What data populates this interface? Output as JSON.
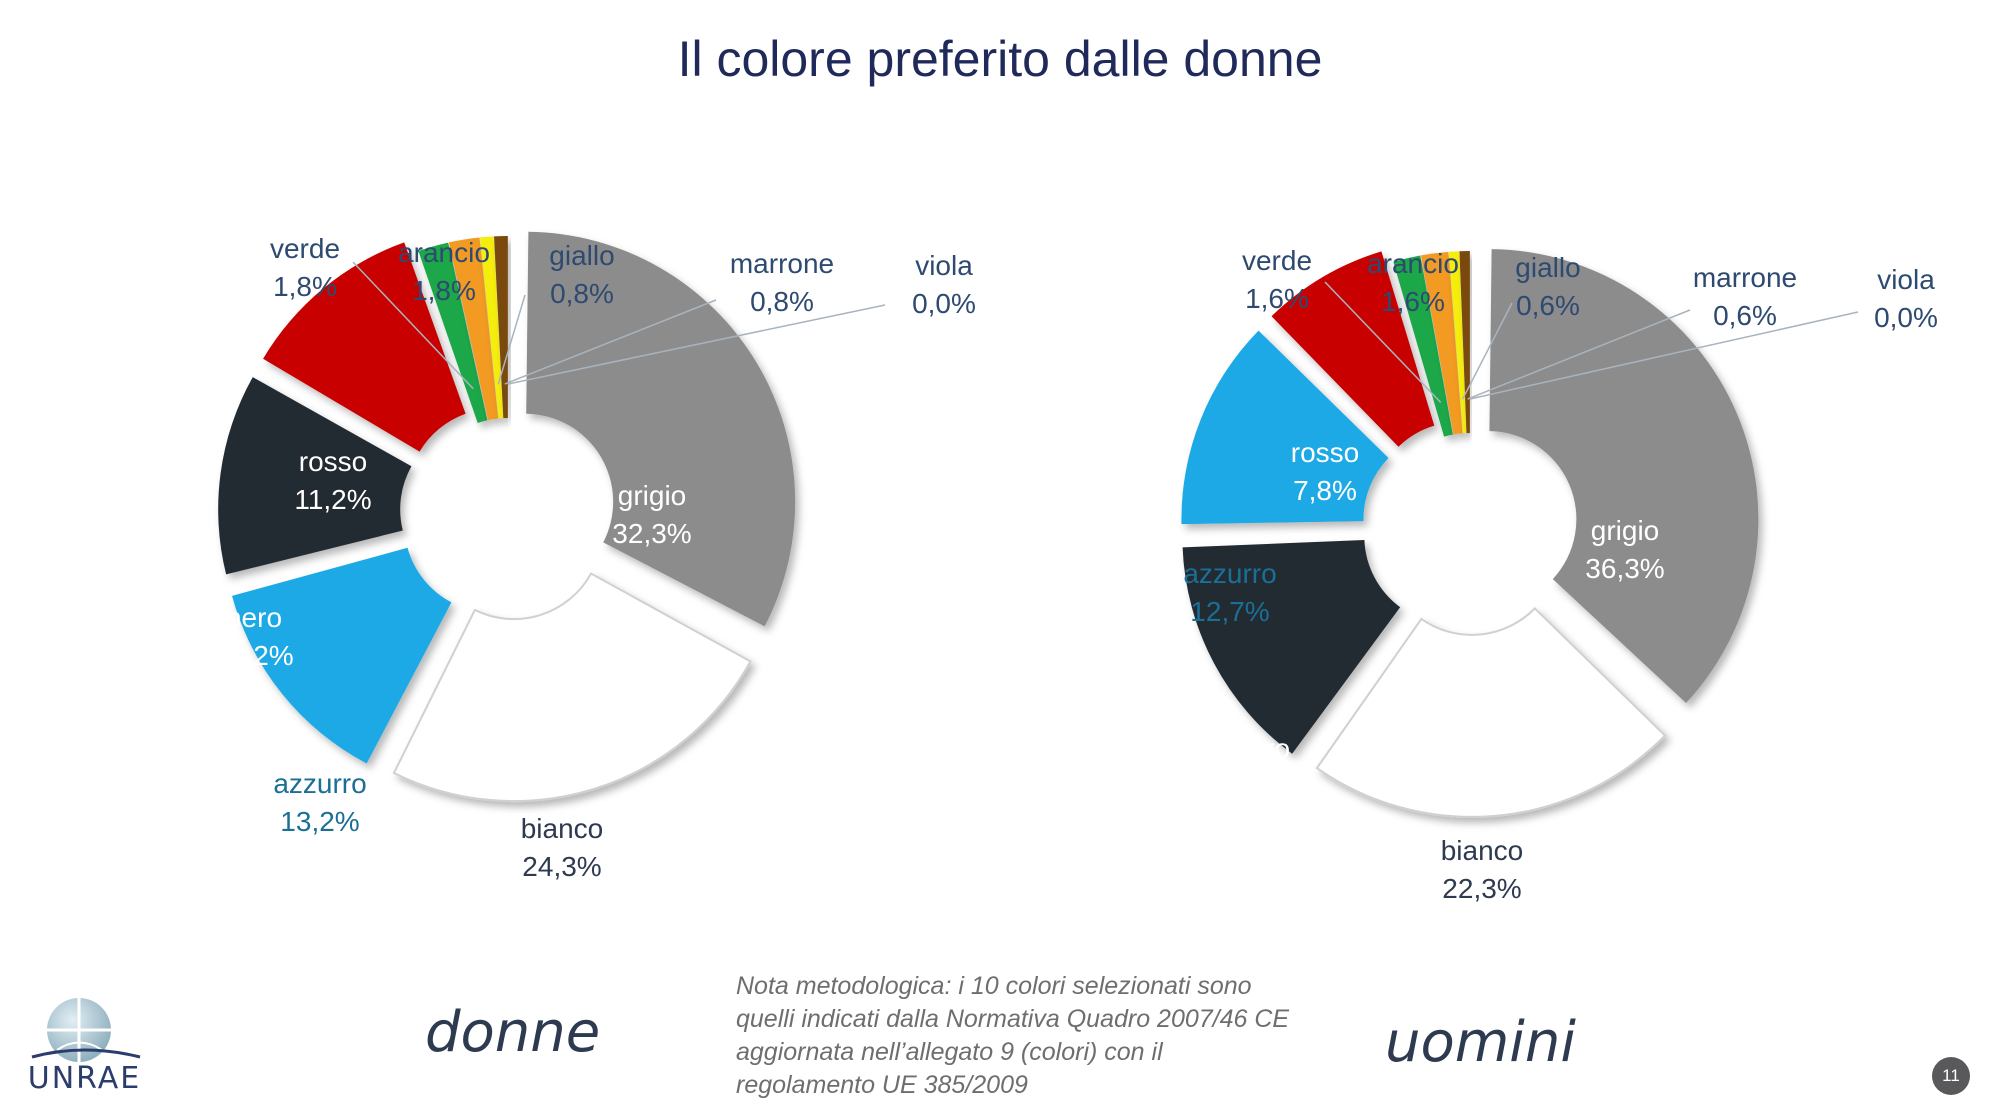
{
  "page": {
    "title": "Il colore preferito dalle donne",
    "note": "Nota metodologica: i 10 colori selezionati sono quelli indicati dalla Normativa Quadro 2007/46 CE aggiornata nell’allegato 9 (colori) con il regolamento UE 385/2009",
    "logo_text": "UNRAE",
    "page_number": "11"
  },
  "chart_data": [
    {
      "type": "pie",
      "title": "donne",
      "slices": [
        {
          "label": "grigio",
          "value_text": "32,3%",
          "value": 32.3,
          "color": "#8c8c8c"
        },
        {
          "label": "bianco",
          "value_text": "24,3%",
          "value": 24.3,
          "color": "#ffffff"
        },
        {
          "label": "azzurro",
          "value_text": "13,2%",
          "value": 13.2,
          "color": "#1aa9e6"
        },
        {
          "label": "nero",
          "value_text": "12,2%",
          "value": 12.2,
          "color": "#222a33"
        },
        {
          "label": "rosso",
          "value_text": "11,2%",
          "value": 11.2,
          "color": "#c90000"
        },
        {
          "label": "verde",
          "value_text": "1,8%",
          "value": 1.8,
          "color": "#1ea84a"
        },
        {
          "label": "arancio",
          "value_text": "1,8%",
          "value": 1.8,
          "color": "#f39a20"
        },
        {
          "label": "giallo",
          "value_text": "0,8%",
          "value": 0.8,
          "color": "#f5ee10"
        },
        {
          "label": "marrone",
          "value_text": "0,8%",
          "value": 0.8,
          "color": "#7a4a10"
        },
        {
          "label": "viola",
          "value_text": "0,0%",
          "value": 0.0,
          "color": "#6a3d9a"
        }
      ]
    },
    {
      "type": "pie",
      "title": "uomini",
      "slices": [
        {
          "label": "grigio",
          "value_text": "36,3%",
          "value": 36.3,
          "color": "#8c8c8c"
        },
        {
          "label": "bianco",
          "value_text": "22,3%",
          "value": 22.3,
          "color": "#ffffff"
        },
        {
          "label": "nero",
          "value_text": "14,3%",
          "value": 14.3,
          "color": "#222a33"
        },
        {
          "label": "azzurro",
          "value_text": "12,7%",
          "value": 12.7,
          "color": "#1aa9e6"
        },
        {
          "label": "rosso",
          "value_text": "7,8%",
          "value": 7.8,
          "color": "#c90000"
        },
        {
          "label": "verde",
          "value_text": "1,6%",
          "value": 1.6,
          "color": "#1ea84a"
        },
        {
          "label": "arancio",
          "value_text": "1,6%",
          "value": 1.6,
          "color": "#f39a20"
        },
        {
          "label": "giallo",
          "value_text": "0,6%",
          "value": 0.6,
          "color": "#f5ee10"
        },
        {
          "label": "marrone",
          "value_text": "0,6%",
          "value": 0.6,
          "color": "#7a4a10"
        },
        {
          "label": "viola",
          "value_text": "0,0%",
          "value": 0.0,
          "color": "#6a3d9a"
        }
      ]
    }
  ]
}
